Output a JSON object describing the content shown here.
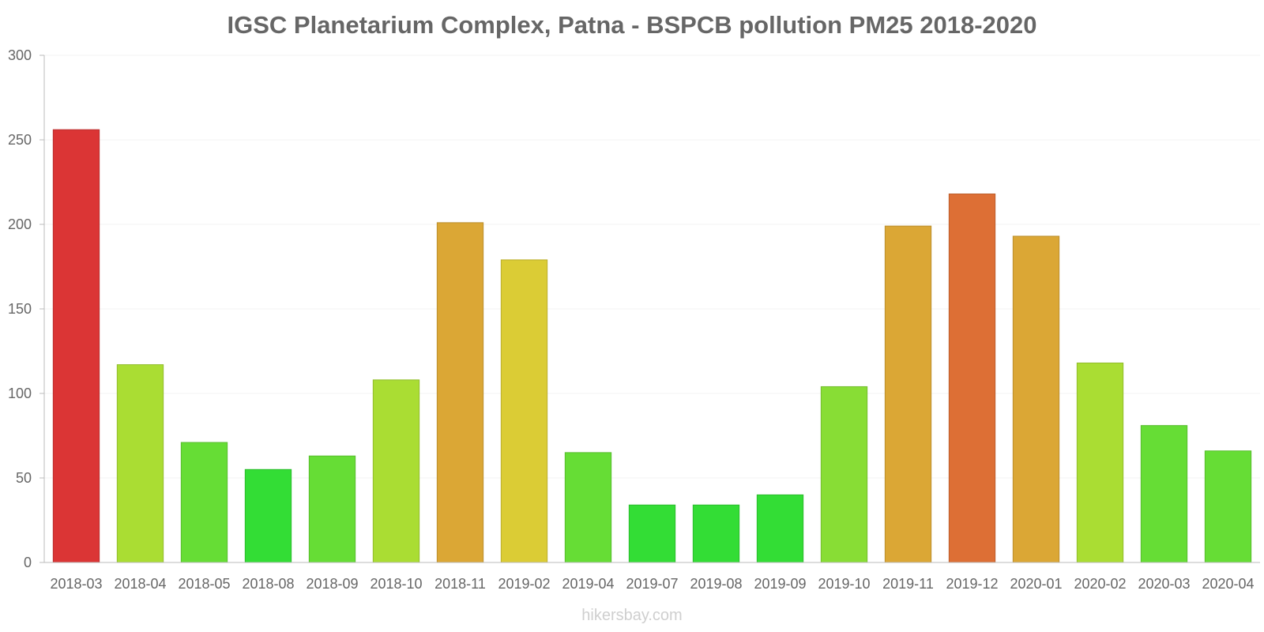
{
  "chart_data": {
    "type": "bar",
    "title": "IGSC Planetarium Complex, Patna - BSPCB pollution PM25 2018-2020",
    "xlabel": "",
    "ylabel": "",
    "ylim": [
      0,
      300
    ],
    "yticks": [
      0,
      50,
      100,
      150,
      200,
      250,
      300
    ],
    "grid": true,
    "categories": [
      "2018-03",
      "2018-04",
      "2018-05",
      "2018-08",
      "2018-09",
      "2018-10",
      "2018-11",
      "2019-02",
      "2019-04",
      "2019-07",
      "2019-08",
      "2019-09",
      "2019-10",
      "2019-11",
      "2019-12",
      "2020-01",
      "2020-02",
      "2020-03",
      "2020-04"
    ],
    "values": [
      256,
      117,
      71,
      55,
      63,
      108,
      201,
      179,
      65,
      34,
      34,
      40,
      104,
      199,
      218,
      193,
      118,
      81,
      66
    ],
    "colors": [
      "#db3535",
      "#aadd33",
      "#66dd35",
      "#33dd35",
      "#66dd35",
      "#aadd33",
      "#dba735",
      "#dbcc35",
      "#66dd35",
      "#33dd35",
      "#33dd35",
      "#33dd35",
      "#88dd35",
      "#dba735",
      "#dd6f35",
      "#dba735",
      "#aadd33",
      "#66dd35",
      "#66dd35"
    ]
  },
  "watermark": "hikersbay.com"
}
